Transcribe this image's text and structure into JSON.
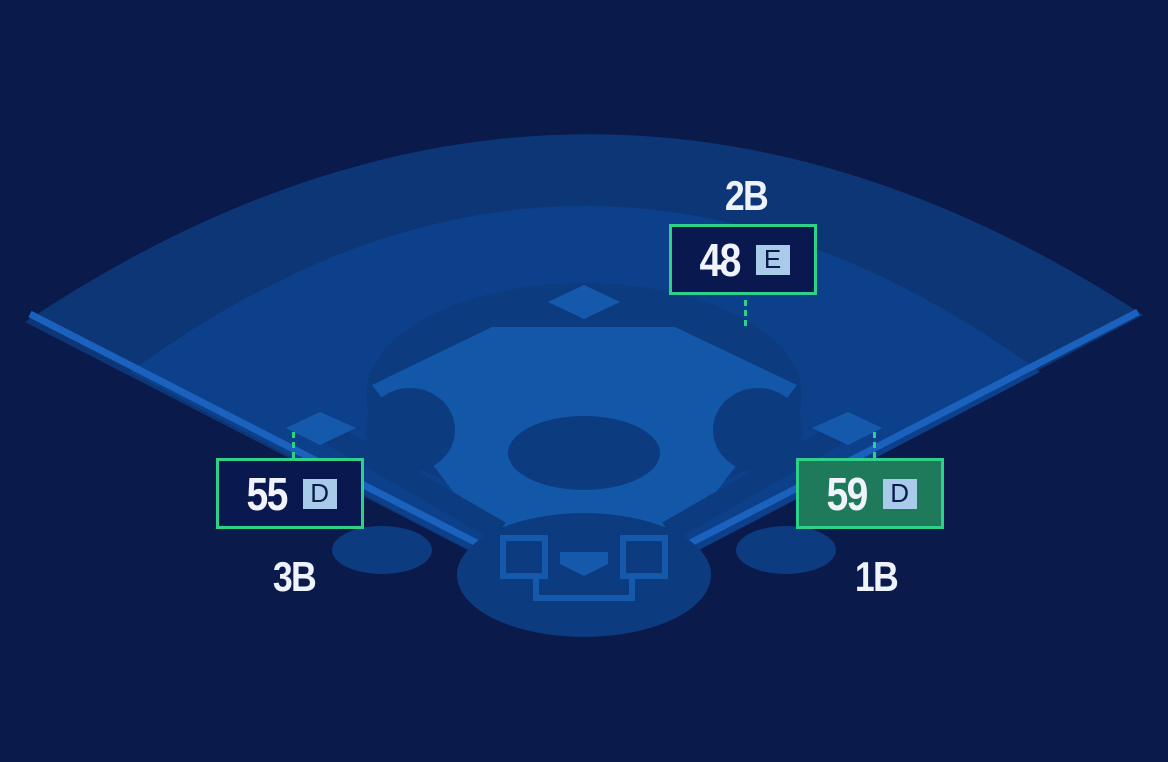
{
  "colors": {
    "background": "#0a1a4b",
    "accent": "#2fd08a",
    "highlight_fill": "#1e7a5a",
    "box_fill": "#0a1850",
    "grade_badge": "#a7cbe9"
  },
  "positions": [
    {
      "id": "2b",
      "label": "2B",
      "value": "48",
      "grade": "E",
      "highlighted": false
    },
    {
      "id": "3b",
      "label": "3B",
      "value": "55",
      "grade": "D",
      "highlighted": false
    },
    {
      "id": "1b",
      "label": "1B",
      "value": "59",
      "grade": "D",
      "highlighted": true
    }
  ]
}
